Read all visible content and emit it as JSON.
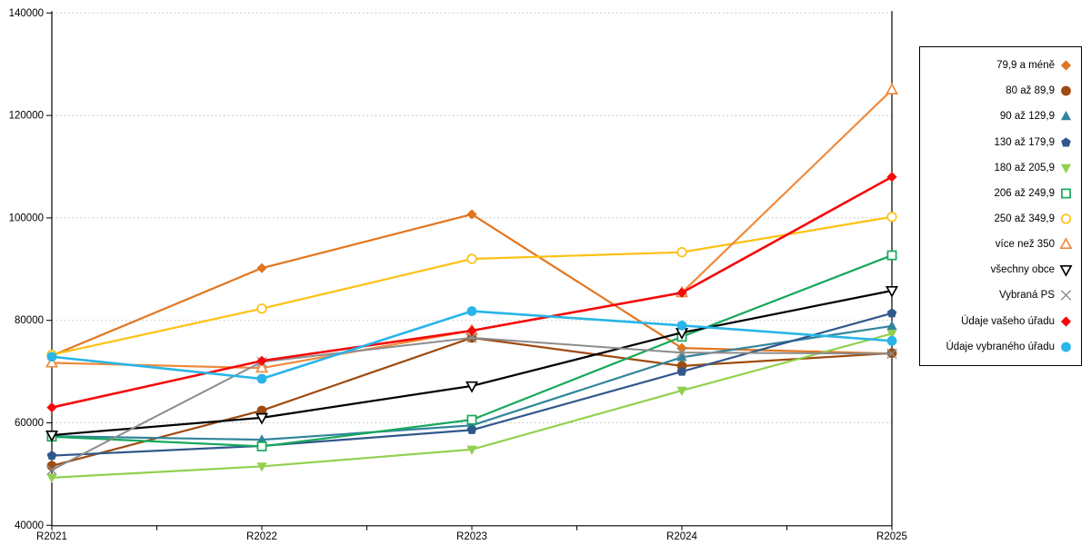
{
  "chart_data": {
    "type": "line",
    "title": "",
    "xlabel": "",
    "ylabel": "",
    "categories": [
      "R2021",
      "R2022",
      "R2023",
      "R2024",
      "R2025"
    ],
    "y_axis": {
      "min": 40000,
      "max": 140000,
      "step": 20000,
      "tick_labels": [
        "40000",
        "60000",
        "80000",
        "100000",
        "120000",
        "140000"
      ]
    },
    "grid": "horizontal-dotted",
    "legend_position": "right",
    "series": [
      {
        "name": "79,9 a méně",
        "color": "#E2751E",
        "marker": "diamond",
        "filled": true,
        "values": [
          73100,
          90200,
          100700,
          74600,
          73500
        ]
      },
      {
        "name": "80 až 89,9",
        "color": "#9E4B10",
        "marker": "circle",
        "filled": true,
        "values": [
          51600,
          62400,
          76600,
          71100,
          73600
        ]
      },
      {
        "name": "90 až 129,9",
        "color": "#31859C",
        "marker": "triangle-up",
        "filled": true,
        "values": [
          57400,
          56700,
          59500,
          72800,
          78900
        ]
      },
      {
        "name": "130 až 179,9",
        "color": "#30588C",
        "marker": "pentagon",
        "filled": true,
        "values": [
          53600,
          55500,
          58600,
          70000,
          81400
        ]
      },
      {
        "name": "180 až 205,9",
        "color": "#92D050",
        "marker": "triangle-down",
        "filled": true,
        "values": [
          49300,
          51500,
          54800,
          66300,
          77400
        ]
      },
      {
        "name": "206 až 249,9",
        "color": "#17A85C",
        "marker": "square",
        "filled": false,
        "values": [
          57300,
          55400,
          60600,
          76800,
          92700
        ]
      },
      {
        "name": "250 až 349,9",
        "color": "#FDC112",
        "marker": "circle",
        "filled": false,
        "values": [
          73300,
          82300,
          92000,
          93300,
          100200
        ]
      },
      {
        "name": "více než 350",
        "color": "#F08A3C",
        "marker": "triangle-up",
        "filled": false,
        "values": [
          71700,
          70700,
          78000,
          85400,
          125000
        ]
      },
      {
        "name": "všechny obce",
        "color": "#000000",
        "marker": "triangle-down",
        "filled": false,
        "values": [
          57600,
          61000,
          67200,
          77600,
          85800
        ]
      },
      {
        "name": "Vybraná PS",
        "color": "#8C8C8C",
        "marker": "x",
        "filled": false,
        "values": [
          50800,
          71900,
          76600,
          73700,
          73500
        ]
      },
      {
        "name": "Údaje vašeho úřadu",
        "color": "#F40A0A",
        "marker": "diamond",
        "filled": true,
        "values": [
          63000,
          72100,
          78000,
          85400,
          108000
        ]
      },
      {
        "name": "Údaje vybraného úřadu",
        "color": "#29B5E8",
        "marker": "circle",
        "filled": true,
        "values": [
          72900,
          68600,
          81800,
          79000,
          76000
        ]
      }
    ]
  }
}
